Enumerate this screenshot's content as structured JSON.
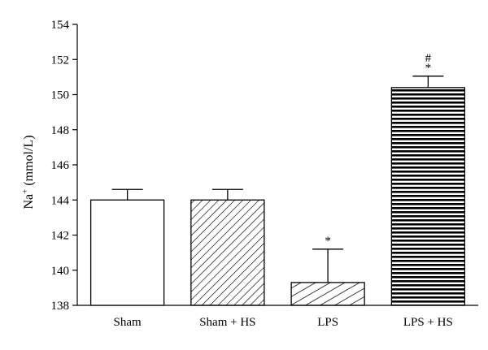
{
  "chart_data": {
    "type": "bar",
    "categories": [
      "Sham",
      "Sham + HS",
      "LPS",
      "LPS + HS"
    ],
    "values": [
      144.0,
      144.0,
      139.3,
      150.4
    ],
    "error": [
      0.6,
      0.6,
      1.9,
      0.65
    ],
    "fills": [
      "white",
      "diagonal",
      "diagonal-wide",
      "horizontal"
    ],
    "annotations": [
      "",
      "",
      "*",
      "*\n#"
    ],
    "ylabel_main": "Na",
    "ylabel_sup": "+",
    "ylabel_rest": " (mmol/L)",
    "ylim": [
      138,
      154
    ],
    "yticks": [
      138,
      140,
      142,
      144,
      146,
      148,
      150,
      152,
      154
    ]
  }
}
